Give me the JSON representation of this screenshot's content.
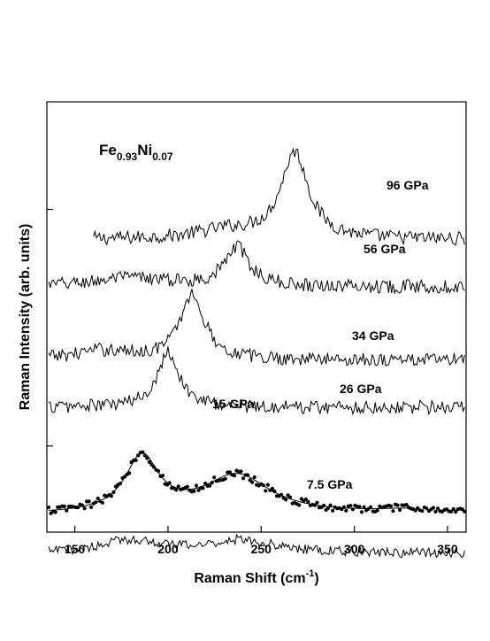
{
  "chart_data": {
    "type": "line",
    "title": "",
    "composition": {
      "element1": "Fe",
      "sub1": "0.93",
      "element2": "Ni",
      "sub2": "0.07"
    },
    "xlabel": "Raman Shift (cm",
    "xlabel_sup": "-1",
    "xlabel_end": ")",
    "ylabel": "Raman Intensity (arb. units)",
    "xlim": [
      135,
      360
    ],
    "x_ticks": [
      150,
      200,
      250,
      300,
      350
    ],
    "y_range": [
      0,
      100
    ],
    "y_tick_marks": [
      20,
      75
    ],
    "y_ticks_labeled": false,
    "grid": false,
    "series": [
      {
        "name": "96 GPa",
        "x_range": [
          160,
          360
        ],
        "baseline": 68,
        "noise": 1.6,
        "peaks": [
          {
            "center": 268,
            "height": 20,
            "width": 9
          },
          {
            "center": 232,
            "height": 2,
            "width": 20
          }
        ]
      },
      {
        "name": "56 GPa",
        "x_range": [
          136,
          360
        ],
        "baseline": 57,
        "noise": 1.6,
        "peaks": [
          {
            "center": 237,
            "height": 9,
            "width": 8
          },
          {
            "center": 180,
            "height": 2,
            "width": 25
          }
        ]
      },
      {
        "name": "34 GPa",
        "x_range": [
          136,
          360
        ],
        "baseline": 40,
        "noise": 1.6,
        "peaks": [
          {
            "center": 213,
            "height": 15,
            "width": 8
          },
          {
            "center": 165,
            "height": 2,
            "width": 20
          }
        ]
      },
      {
        "name": "26 GPa",
        "x_range": [
          136,
          360
        ],
        "baseline": 29,
        "noise": 1.6,
        "peaks": [
          {
            "center": 200,
            "height": 13,
            "width": 7
          }
        ]
      },
      {
        "name": "15 GPa",
        "x_range": [
          136,
          360
        ],
        "baseline": 4,
        "noise": 0.9,
        "markers": true,
        "marker_spacing": 1.2,
        "peaks": [
          {
            "center": 186,
            "height": 13,
            "width": 11
          },
          {
            "center": 237,
            "height": 9,
            "width": 22
          },
          {
            "center": 330,
            "height": 1,
            "width": 25
          }
        ]
      },
      {
        "name": "7.5 GPa",
        "x_range": [
          136,
          360
        ],
        "baseline": 3,
        "noise": 1.1,
        "offset": -8,
        "peaks": [
          {
            "center": 180,
            "height": 3,
            "width": 20
          },
          {
            "center": 240,
            "height": 3,
            "width": 22
          }
        ]
      }
    ],
    "fit": {
      "series": "15 GPa",
      "x_range": [
        136,
        331
      ]
    },
    "labels": [
      {
        "text": "96 GPa",
        "at": [
          235,
          0
        ]
      },
      {
        "text": "56 GPa",
        "at": [
          218,
          0
        ]
      },
      {
        "text": "34 GPa",
        "at": [
          198,
          0
        ]
      },
      {
        "text": "26 GPa",
        "at": [
          188,
          0
        ]
      },
      {
        "text": "15 GPa",
        "at": [
          108,
          0
        ]
      },
      {
        "text": "7.5 GPa",
        "at": [
          160,
          0
        ]
      }
    ]
  }
}
